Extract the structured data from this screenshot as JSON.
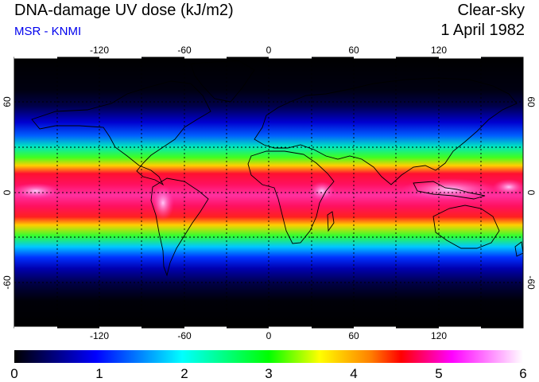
{
  "header": {
    "title": "DNA-damage UV dose (kJ/m2)",
    "source": "MSR - KNMI",
    "sky_condition": "Clear-sky",
    "date": "1 April 1982"
  },
  "map": {
    "projection": "equirectangular",
    "lon_range": [
      -180,
      180
    ],
    "lat_range": [
      -90,
      90
    ],
    "lon_ticks": [
      "-120",
      "-60",
      "0",
      "60",
      "120"
    ],
    "lat_ticks": [
      "60",
      "0",
      "-60"
    ],
    "gridlines": "dotted"
  },
  "colorbar": {
    "min": 0,
    "max": 6,
    "labels": [
      "0",
      "1",
      "2",
      "3",
      "4",
      "5",
      "6"
    ],
    "colors": [
      "#000000",
      "#0000ff",
      "#00ffff",
      "#00ff00",
      "#ffff00",
      "#ff0000",
      "#ff00ff",
      "#ffffff"
    ]
  }
}
